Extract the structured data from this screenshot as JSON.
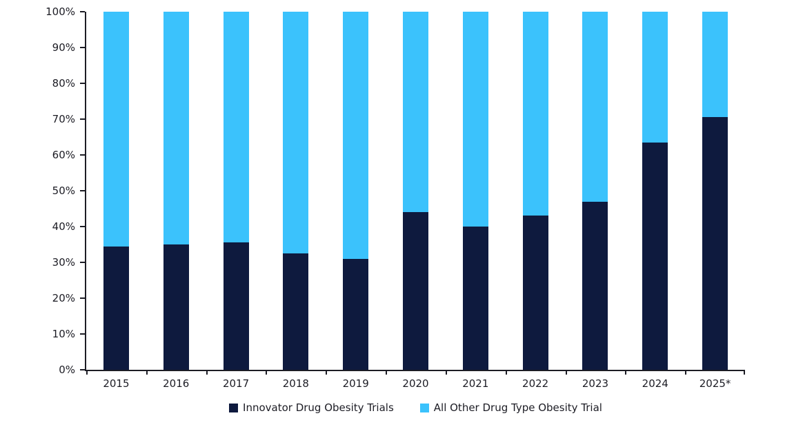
{
  "chart_data": {
    "type": "bar",
    "stacked": true,
    "percent_stacked": true,
    "title": "",
    "xlabel": "",
    "ylabel": "",
    "categories": [
      "2015",
      "2016",
      "2017",
      "2018",
      "2019",
      "2020",
      "2021",
      "2022",
      "2023",
      "2024",
      "2025*"
    ],
    "series": [
      {
        "name": "Innovator Drug Obesity Trials",
        "color": "#0e1a3e",
        "values": [
          34.5,
          35,
          35.5,
          32.5,
          31,
          44,
          40,
          43,
          47,
          63.5,
          70.5
        ]
      },
      {
        "name": "All Other Drug Type Obesity Trial",
        "color": "#3bc2fc",
        "values": [
          65.5,
          65,
          64.5,
          67.5,
          69,
          56,
          60,
          57,
          53,
          36.5,
          29.5
        ]
      }
    ],
    "ylim": [
      0,
      100
    ],
    "ytick_step": 10,
    "ytick_labels": [
      "0%",
      "10%",
      "20%",
      "30%",
      "40%",
      "50%",
      "60%",
      "70%",
      "80%",
      "90%",
      "100%"
    ],
    "legend_position": "bottom",
    "grid": false,
    "axis_color": "#1c1c24",
    "background_color": "#ffffff"
  }
}
